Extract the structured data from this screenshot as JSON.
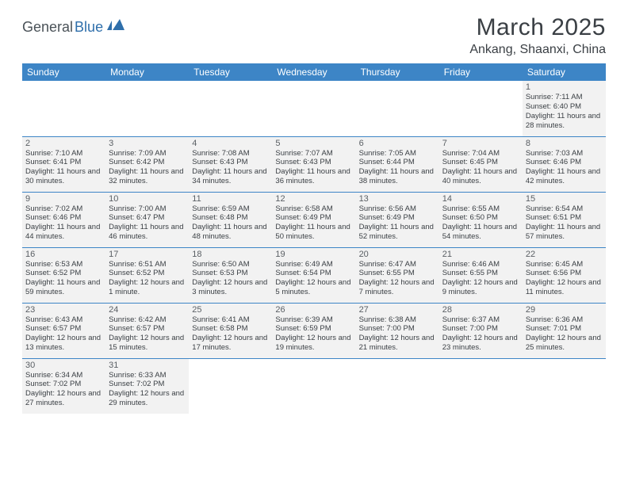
{
  "logo": {
    "text_dark": "General",
    "text_blue": "Blue"
  },
  "title": "March 2025",
  "location": "Ankang, Shaanxi, China",
  "colors": {
    "header_bg": "#3d85c6",
    "header_text": "#ffffff",
    "cell_bg": "#f2f2f2",
    "border": "#3d85c6",
    "text": "#3a3f44",
    "logo_dark": "#4a5258",
    "logo_blue": "#2f6fab"
  },
  "day_headers": [
    "Sunday",
    "Monday",
    "Tuesday",
    "Wednesday",
    "Thursday",
    "Friday",
    "Saturday"
  ],
  "weeks": [
    [
      null,
      null,
      null,
      null,
      null,
      null,
      {
        "n": "1",
        "sr": "7:11 AM",
        "ss": "6:40 PM",
        "dl": "11 hours and 28 minutes."
      }
    ],
    [
      {
        "n": "2",
        "sr": "7:10 AM",
        "ss": "6:41 PM",
        "dl": "11 hours and 30 minutes."
      },
      {
        "n": "3",
        "sr": "7:09 AM",
        "ss": "6:42 PM",
        "dl": "11 hours and 32 minutes."
      },
      {
        "n": "4",
        "sr": "7:08 AM",
        "ss": "6:43 PM",
        "dl": "11 hours and 34 minutes."
      },
      {
        "n": "5",
        "sr": "7:07 AM",
        "ss": "6:43 PM",
        "dl": "11 hours and 36 minutes."
      },
      {
        "n": "6",
        "sr": "7:05 AM",
        "ss": "6:44 PM",
        "dl": "11 hours and 38 minutes."
      },
      {
        "n": "7",
        "sr": "7:04 AM",
        "ss": "6:45 PM",
        "dl": "11 hours and 40 minutes."
      },
      {
        "n": "8",
        "sr": "7:03 AM",
        "ss": "6:46 PM",
        "dl": "11 hours and 42 minutes."
      }
    ],
    [
      {
        "n": "9",
        "sr": "7:02 AM",
        "ss": "6:46 PM",
        "dl": "11 hours and 44 minutes."
      },
      {
        "n": "10",
        "sr": "7:00 AM",
        "ss": "6:47 PM",
        "dl": "11 hours and 46 minutes."
      },
      {
        "n": "11",
        "sr": "6:59 AM",
        "ss": "6:48 PM",
        "dl": "11 hours and 48 minutes."
      },
      {
        "n": "12",
        "sr": "6:58 AM",
        "ss": "6:49 PM",
        "dl": "11 hours and 50 minutes."
      },
      {
        "n": "13",
        "sr": "6:56 AM",
        "ss": "6:49 PM",
        "dl": "11 hours and 52 minutes."
      },
      {
        "n": "14",
        "sr": "6:55 AM",
        "ss": "6:50 PM",
        "dl": "11 hours and 54 minutes."
      },
      {
        "n": "15",
        "sr": "6:54 AM",
        "ss": "6:51 PM",
        "dl": "11 hours and 57 minutes."
      }
    ],
    [
      {
        "n": "16",
        "sr": "6:53 AM",
        "ss": "6:52 PM",
        "dl": "11 hours and 59 minutes."
      },
      {
        "n": "17",
        "sr": "6:51 AM",
        "ss": "6:52 PM",
        "dl": "12 hours and 1 minute."
      },
      {
        "n": "18",
        "sr": "6:50 AM",
        "ss": "6:53 PM",
        "dl": "12 hours and 3 minutes."
      },
      {
        "n": "19",
        "sr": "6:49 AM",
        "ss": "6:54 PM",
        "dl": "12 hours and 5 minutes."
      },
      {
        "n": "20",
        "sr": "6:47 AM",
        "ss": "6:55 PM",
        "dl": "12 hours and 7 minutes."
      },
      {
        "n": "21",
        "sr": "6:46 AM",
        "ss": "6:55 PM",
        "dl": "12 hours and 9 minutes."
      },
      {
        "n": "22",
        "sr": "6:45 AM",
        "ss": "6:56 PM",
        "dl": "12 hours and 11 minutes."
      }
    ],
    [
      {
        "n": "23",
        "sr": "6:43 AM",
        "ss": "6:57 PM",
        "dl": "12 hours and 13 minutes."
      },
      {
        "n": "24",
        "sr": "6:42 AM",
        "ss": "6:57 PM",
        "dl": "12 hours and 15 minutes."
      },
      {
        "n": "25",
        "sr": "6:41 AM",
        "ss": "6:58 PM",
        "dl": "12 hours and 17 minutes."
      },
      {
        "n": "26",
        "sr": "6:39 AM",
        "ss": "6:59 PM",
        "dl": "12 hours and 19 minutes."
      },
      {
        "n": "27",
        "sr": "6:38 AM",
        "ss": "7:00 PM",
        "dl": "12 hours and 21 minutes."
      },
      {
        "n": "28",
        "sr": "6:37 AM",
        "ss": "7:00 PM",
        "dl": "12 hours and 23 minutes."
      },
      {
        "n": "29",
        "sr": "6:36 AM",
        "ss": "7:01 PM",
        "dl": "12 hours and 25 minutes."
      }
    ],
    [
      {
        "n": "30",
        "sr": "6:34 AM",
        "ss": "7:02 PM",
        "dl": "12 hours and 27 minutes."
      },
      {
        "n": "31",
        "sr": "6:33 AM",
        "ss": "7:02 PM",
        "dl": "12 hours and 29 minutes."
      },
      null,
      null,
      null,
      null,
      null
    ]
  ],
  "labels": {
    "sunrise": "Sunrise: ",
    "sunset": "Sunset: ",
    "daylight": "Daylight: "
  }
}
